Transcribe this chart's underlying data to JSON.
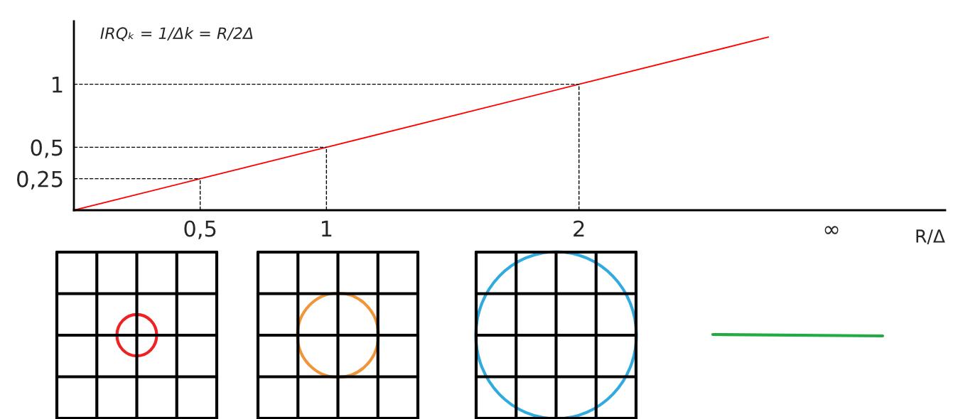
{
  "chart_data": {
    "type": "line",
    "ylabel": "IRQₖ = 1/Δk = R/2Δ",
    "xlabel": "R/Δ",
    "x": [
      0,
      0.5,
      1,
      2,
      2.75
    ],
    "series": [
      {
        "color": "#ff0000",
        "values": [
          0,
          0.25,
          0.5,
          1,
          1.375
        ]
      }
    ],
    "xlim": [
      0,
      3.45
    ],
    "ylim": [
      0,
      1.5
    ],
    "xticks": [
      {
        "value": 0.5,
        "label": "0,5"
      },
      1,
      2,
      {
        "value": 3,
        "label": "∞"
      }
    ],
    "yticks": [
      {
        "value": 0.25,
        "label": "0,25"
      },
      {
        "value": 0.5,
        "label": "0,5"
      },
      1
    ],
    "ref_lines": [
      {
        "axis": "y",
        "value": 0.25,
        "color": "#000000",
        "line_style": "dashed"
      },
      {
        "axis": "y",
        "value": 0.5,
        "color": "#000000",
        "line_style": "dashed"
      },
      {
        "axis": "y",
        "value": 1,
        "color": "#000000",
        "line_style": "dashed"
      },
      {
        "axis": "x",
        "value": 0.5,
        "color": "#000000",
        "line_style": "dashed"
      },
      {
        "axis": "x",
        "value": 1,
        "color": "#000000",
        "line_style": "dashed"
      },
      {
        "axis": "x",
        "value": 2,
        "color": "#000000",
        "line_style": "dashed"
      }
    ],
    "grid": false,
    "legend": false
  }
}
